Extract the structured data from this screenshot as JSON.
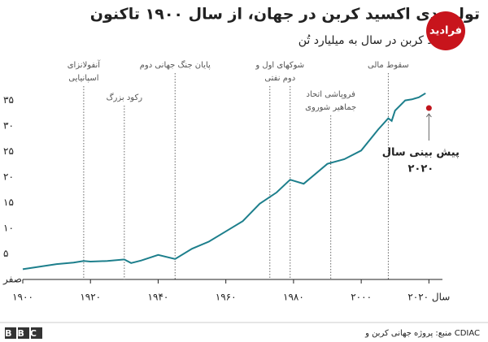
{
  "chart_data": {
    "type": "line",
    "title": "تولید دی اکسید کربن در جهان، از سال ۱۹۰۰ تاکنون",
    "subtitle": "اکسید کربن در سال به میلیارد تُن",
    "x": [
      1900,
      1905,
      1910,
      1915,
      1918,
      1920,
      1925,
      1930,
      1932,
      1935,
      1940,
      1945,
      1950,
      1955,
      1960,
      1965,
      1970,
      1975,
      1979,
      1983,
      1990,
      1995,
      2000,
      2005,
      2008,
      2009,
      2010,
      2013,
      2015,
      2017,
      2019
    ],
    "values": [
      2.0,
      2.5,
      3.0,
      3.3,
      3.6,
      3.5,
      3.6,
      3.9,
      3.2,
      3.7,
      4.8,
      4.0,
      6.0,
      7.4,
      9.4,
      11.4,
      14.8,
      17.0,
      19.5,
      18.7,
      22.6,
      23.5,
      25.2,
      29.3,
      31.5,
      31.0,
      33.0,
      35.0,
      35.2,
      35.6,
      36.4
    ],
    "color": "#1d7f8c",
    "xlim": [
      1900,
      2024
    ],
    "ylim": [
      0,
      37
    ],
    "xticks": [
      {
        "value": 1900,
        "label": "۱۹۰۰"
      },
      {
        "value": 1920,
        "label": "۱۹۲۰"
      },
      {
        "value": 1940,
        "label": "۱۹۴۰"
      },
      {
        "value": 1960,
        "label": "۱۹۶۰"
      },
      {
        "value": 1980,
        "label": "۱۹۸۰"
      },
      {
        "value": 2000,
        "label": "۲۰۰۰"
      },
      {
        "value": 2020,
        "label": "سال ۲۰۲۰"
      }
    ],
    "yticks": [
      {
        "value": 0,
        "label": "صفر"
      },
      {
        "value": 5,
        "label": "۵"
      },
      {
        "value": 10,
        "label": "۱۰"
      },
      {
        "value": 15,
        "label": "۱۵"
      },
      {
        "value": 20,
        "label": "۲۰"
      },
      {
        "value": 25,
        "label": "۲۵"
      },
      {
        "value": 30,
        "label": "۳۰"
      },
      {
        "value": 35,
        "label": "۳۵"
      }
    ],
    "events": [
      {
        "years": [
          1918
        ],
        "lines": [
          "آنفولانزای",
          "اسپانیایی"
        ]
      },
      {
        "years": [
          1930
        ],
        "lines": [
          "رکود بزرگ"
        ]
      },
      {
        "years": [
          1945
        ],
        "lines": [
          "پایان جنگ جهانی دوم"
        ]
      },
      {
        "years": [
          1973,
          1979
        ],
        "lines": [
          "شوکهای اول و",
          "دوم نفتی"
        ]
      },
      {
        "years": [
          1991
        ],
        "lines": [
          "فروپاشی اتحاد",
          "جماهیر شوروی"
        ]
      },
      {
        "years": [
          2008
        ],
        "lines": [
          "سقوط مالی"
        ]
      }
    ],
    "forecast": {
      "x": 2020,
      "value": 33.5,
      "color": "#c0141c",
      "lines": [
        "پیش بینی سال",
        "۲۰۲۰"
      ]
    },
    "watermark": "فرادید",
    "source": "منبع: پروژه جهانی کربن و CDIAC",
    "brand": "BBC"
  }
}
